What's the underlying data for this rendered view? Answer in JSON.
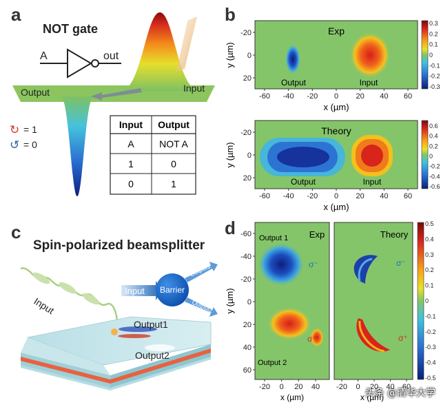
{
  "panel_a": {
    "letter": "a",
    "title": "NOT gate",
    "gate_input": "A",
    "gate_output": "out",
    "output_label": "Output",
    "input_label": "Input",
    "legend": [
      {
        "symbol": "↻",
        "text": "= 1",
        "color": "#d9362b"
      },
      {
        "symbol": "↺",
        "text": "= 0",
        "color": "#2c5fa8"
      }
    ],
    "truth_table": {
      "headers": [
        "Input",
        "Output"
      ],
      "rows": [
        [
          "A",
          "NOT A"
        ],
        [
          "1",
          "0"
        ],
        [
          "0",
          "1"
        ]
      ]
    }
  },
  "panel_b": {
    "letter": "b",
    "exp_title": "Exp",
    "theory_title": "Theory",
    "output_label": "Output",
    "input_label": "Input",
    "xlabel": "x (µm)",
    "ylabel": "y (µm)",
    "x_ticks": [
      "-60",
      "-40",
      "-20",
      "0",
      "20",
      "40",
      "60"
    ],
    "y_ticks": [
      "-20",
      "0",
      "20"
    ],
    "exp_colorbar_ticks": [
      "0.3",
      "0.2",
      "0.1",
      "0",
      "-0.1",
      "-0.2",
      "-0.3"
    ],
    "theory_colorbar_ticks": [
      "0.6",
      "0.4",
      "0.2",
      "0",
      "-0.2",
      "-0.4",
      "-0.6"
    ]
  },
  "panel_c": {
    "letter": "c",
    "title": "Spin-polarized beamsplitter",
    "input_label": "Input",
    "barrier_label": "Barrier",
    "output1": "Output1",
    "output2": "Output2",
    "diagram_input": "Input",
    "diagram_output1": "Output1",
    "diagram_output2": "Output2"
  },
  "panel_d": {
    "letter": "d",
    "exp_title": "Exp",
    "theory_title": "Theory",
    "output1_label": "Output 1",
    "output2_label": "Output 2",
    "sigma_minus": "σ⁻",
    "sigma_plus": "σ⁺",
    "xlabel_left": "x (µm)",
    "xlabel_right": "x (µm)",
    "ylabel": "y (µm)",
    "y_ticks": [
      "-60",
      "-40",
      "-20",
      "0",
      "20",
      "40",
      "60"
    ],
    "x_ticks_left": [
      "-20",
      "0",
      "20",
      "40"
    ],
    "x_ticks_right": [
      "-20",
      "0",
      "20",
      "40",
      "60"
    ],
    "colorbar_ticks": [
      "0.5",
      "0.4",
      "0.3",
      "0.2",
      "0.1",
      "0",
      "-0.1",
      "-0.2",
      "-0.3",
      "-0.4",
      "-0.5"
    ]
  },
  "watermark": "头条 @清华大学",
  "colors": {
    "green_bg": "#7fc163",
    "blue_spot": "#123c9c",
    "red_spot": "#e0321f",
    "yellow": "#f3c11c"
  }
}
